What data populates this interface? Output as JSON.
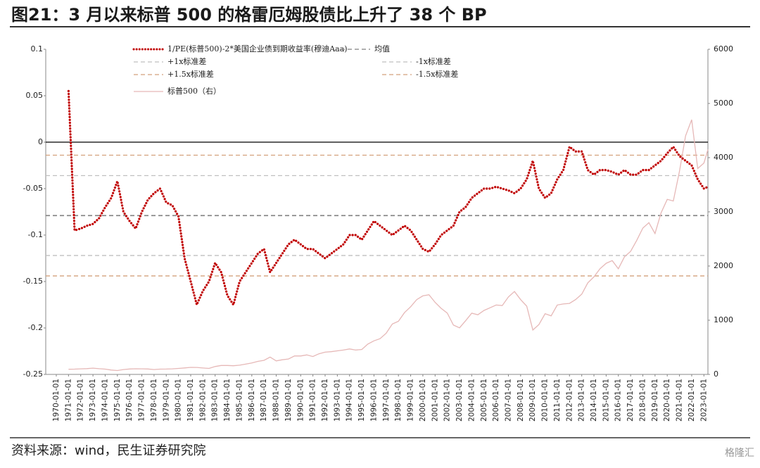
{
  "header": {
    "title": "图21：3 月以来标普 500 的格雷厄姆股债比上升了 38 个 BP"
  },
  "footer": {
    "source": "资料来源：wind，民生证券研究院",
    "watermark": "格隆汇"
  },
  "chart_data": {
    "type": "line",
    "xlim": [
      "1970-01-01",
      "2023-05-01"
    ],
    "xticks": [
      "1970-01-01",
      "1971-01-01",
      "1972-01-01",
      "1973-01-01",
      "1974-01-01",
      "1975-01-01",
      "1976-01-01",
      "1977-01-01",
      "1978-01-01",
      "1979-01-01",
      "1980-01-01",
      "1981-01-01",
      "1982-01-01",
      "1983-01-01",
      "1984-01-01",
      "1985-01-01",
      "1986-01-01",
      "1987-01-01",
      "1988-01-01",
      "1989-01-01",
      "1990-01-01",
      "1991-01-01",
      "1992-01-01",
      "1993-01-01",
      "1994-01-01",
      "1995-01-01",
      "1996-01-01",
      "1997-01-01",
      "1998-01-01",
      "1999-01-01",
      "2000-01-01",
      "2001-01-01",
      "2002-01-01",
      "2003-01-01",
      "2004-01-01",
      "2005-01-01",
      "2006-01-01",
      "2007-01-01",
      "2008-01-01",
      "2009-01-01",
      "2010-01-01",
      "2011-01-01",
      "2012-01-01",
      "2013-01-01",
      "2014-01-01",
      "2015-01-01",
      "2016-01-01",
      "2017-01-01",
      "2018-01-01",
      "2019-01-01",
      "2020-01-01",
      "2021-01-01",
      "2022-01-01",
      "2023-01-01"
    ],
    "ylim": [
      -0.25,
      0.1
    ],
    "yticks": [
      0.1,
      0.05,
      0,
      -0.05,
      -0.1,
      -0.15,
      -0.2,
      -0.25
    ],
    "y2lim": [
      0,
      6000
    ],
    "y2ticks": [
      0,
      1000,
      2000,
      3000,
      4000,
      5000,
      6000
    ],
    "x": [
      "1971-01-01",
      "1971-07-01",
      "1972-01-01",
      "1972-07-01",
      "1973-01-01",
      "1973-07-01",
      "1974-01-01",
      "1974-07-01",
      "1975-01-01",
      "1975-07-01",
      "1976-01-01",
      "1976-07-01",
      "1977-01-01",
      "1977-07-01",
      "1978-01-01",
      "1978-07-01",
      "1979-01-01",
      "1979-07-01",
      "1980-01-01",
      "1980-07-01",
      "1981-01-01",
      "1981-07-01",
      "1982-01-01",
      "1982-07-01",
      "1983-01-01",
      "1983-07-01",
      "1984-01-01",
      "1984-07-01",
      "1985-01-01",
      "1985-07-01",
      "1986-01-01",
      "1986-07-01",
      "1987-01-01",
      "1987-07-01",
      "1988-01-01",
      "1988-07-01",
      "1989-01-01",
      "1989-07-01",
      "1990-01-01",
      "1990-07-01",
      "1991-01-01",
      "1991-07-01",
      "1992-01-01",
      "1992-07-01",
      "1993-01-01",
      "1993-07-01",
      "1994-01-01",
      "1994-07-01",
      "1995-01-01",
      "1995-07-01",
      "1996-01-01",
      "1996-07-01",
      "1997-01-01",
      "1997-07-01",
      "1998-01-01",
      "1998-07-01",
      "1999-01-01",
      "1999-07-01",
      "2000-01-01",
      "2000-07-01",
      "2001-01-01",
      "2001-07-01",
      "2002-01-01",
      "2002-07-01",
      "2003-01-01",
      "2003-07-01",
      "2004-01-01",
      "2004-07-01",
      "2005-01-01",
      "2005-07-01",
      "2006-01-01",
      "2006-07-01",
      "2007-01-01",
      "2007-07-01",
      "2008-01-01",
      "2008-07-01",
      "2009-01-01",
      "2009-07-01",
      "2010-01-01",
      "2010-07-01",
      "2011-01-01",
      "2011-07-01",
      "2012-01-01",
      "2012-07-01",
      "2013-01-01",
      "2013-07-01",
      "2014-01-01",
      "2014-07-01",
      "2015-01-01",
      "2015-07-01",
      "2016-01-01",
      "2016-07-01",
      "2017-01-01",
      "2017-07-01",
      "2018-01-01",
      "2018-07-01",
      "2019-01-01",
      "2019-07-01",
      "2020-01-01",
      "2020-07-01",
      "2021-01-01",
      "2021-07-01",
      "2022-01-01",
      "2022-07-01",
      "2023-01-01",
      "2023-05-01"
    ],
    "series": [
      {
        "name": "1/PE(标普500)-2*美国企业债到期收益率(穆迪Aaa)",
        "color": "#c00000",
        "style": "dotted",
        "values": [
          0.055,
          -0.095,
          -0.093,
          -0.09,
          -0.088,
          -0.082,
          -0.07,
          -0.06,
          -0.042,
          -0.075,
          -0.085,
          -0.093,
          -0.075,
          -0.062,
          -0.055,
          -0.05,
          -0.065,
          -0.068,
          -0.08,
          -0.125,
          -0.15,
          -0.175,
          -0.16,
          -0.15,
          -0.13,
          -0.14,
          -0.165,
          -0.175,
          -0.15,
          -0.14,
          -0.13,
          -0.12,
          -0.115,
          -0.14,
          -0.13,
          -0.12,
          -0.11,
          -0.105,
          -0.11,
          -0.115,
          -0.115,
          -0.12,
          -0.125,
          -0.12,
          -0.115,
          -0.11,
          -0.1,
          -0.1,
          -0.105,
          -0.095,
          -0.085,
          -0.09,
          -0.095,
          -0.1,
          -0.095,
          -0.09,
          -0.095,
          -0.105,
          -0.115,
          -0.118,
          -0.11,
          -0.1,
          -0.095,
          -0.09,
          -0.075,
          -0.07,
          -0.06,
          -0.055,
          -0.05,
          -0.05,
          -0.048,
          -0.05,
          -0.052,
          -0.055,
          -0.05,
          -0.04,
          -0.02,
          -0.05,
          -0.06,
          -0.055,
          -0.04,
          -0.03,
          -0.005,
          -0.01,
          -0.01,
          -0.03,
          -0.035,
          -0.03,
          -0.03,
          -0.032,
          -0.035,
          -0.03,
          -0.035,
          -0.035,
          -0.03,
          -0.03,
          -0.025,
          -0.02,
          -0.012,
          -0.005,
          -0.015,
          -0.02,
          -0.025,
          -0.04,
          -0.05,
          -0.048
        ]
      },
      {
        "name": "标普500（右）",
        "color": "#e6b8b7",
        "style": "solid",
        "axis": "y2",
        "values": [
          95,
          98,
          103,
          107,
          116,
          105,
          97,
          80,
          72,
          90,
          100,
          104,
          103,
          100,
          90,
          98,
          99,
          103,
          110,
          120,
          130,
          128,
          118,
          110,
          145,
          165,
          165,
          160,
          170,
          190,
          210,
          240,
          260,
          320,
          250,
          270,
          285,
          340,
          340,
          360,
          330,
          380,
          410,
          420,
          435,
          450,
          470,
          450,
          460,
          560,
          620,
          660,
          760,
          930,
          980,
          1140,
          1250,
          1380,
          1450,
          1470,
          1330,
          1220,
          1130,
          910,
          860,
          990,
          1130,
          1100,
          1180,
          1230,
          1280,
          1270,
          1430,
          1530,
          1380,
          1260,
          820,
          920,
          1120,
          1080,
          1280,
          1300,
          1310,
          1380,
          1480,
          1690,
          1800,
          1950,
          2050,
          2100,
          1950,
          2170,
          2270,
          2470,
          2700,
          2800,
          2600,
          2980,
          3230,
          3200,
          3750,
          4400,
          4700,
          3800,
          3900,
          4150
        ]
      }
    ],
    "reference_lines": [
      {
        "name": "均值",
        "value": -0.079,
        "color": "#808080"
      },
      {
        "name": "+1x标准差",
        "value": -0.036,
        "color": "#bfbfbf"
      },
      {
        "name": "-1x标准差",
        "value": -0.122,
        "color": "#bfbfbf"
      },
      {
        "name": "+1.5x标准差",
        "value": -0.014,
        "color": "#d4a17c"
      },
      {
        "name": "-1.5x标准差",
        "value": -0.144,
        "color": "#d4a17c"
      }
    ]
  }
}
